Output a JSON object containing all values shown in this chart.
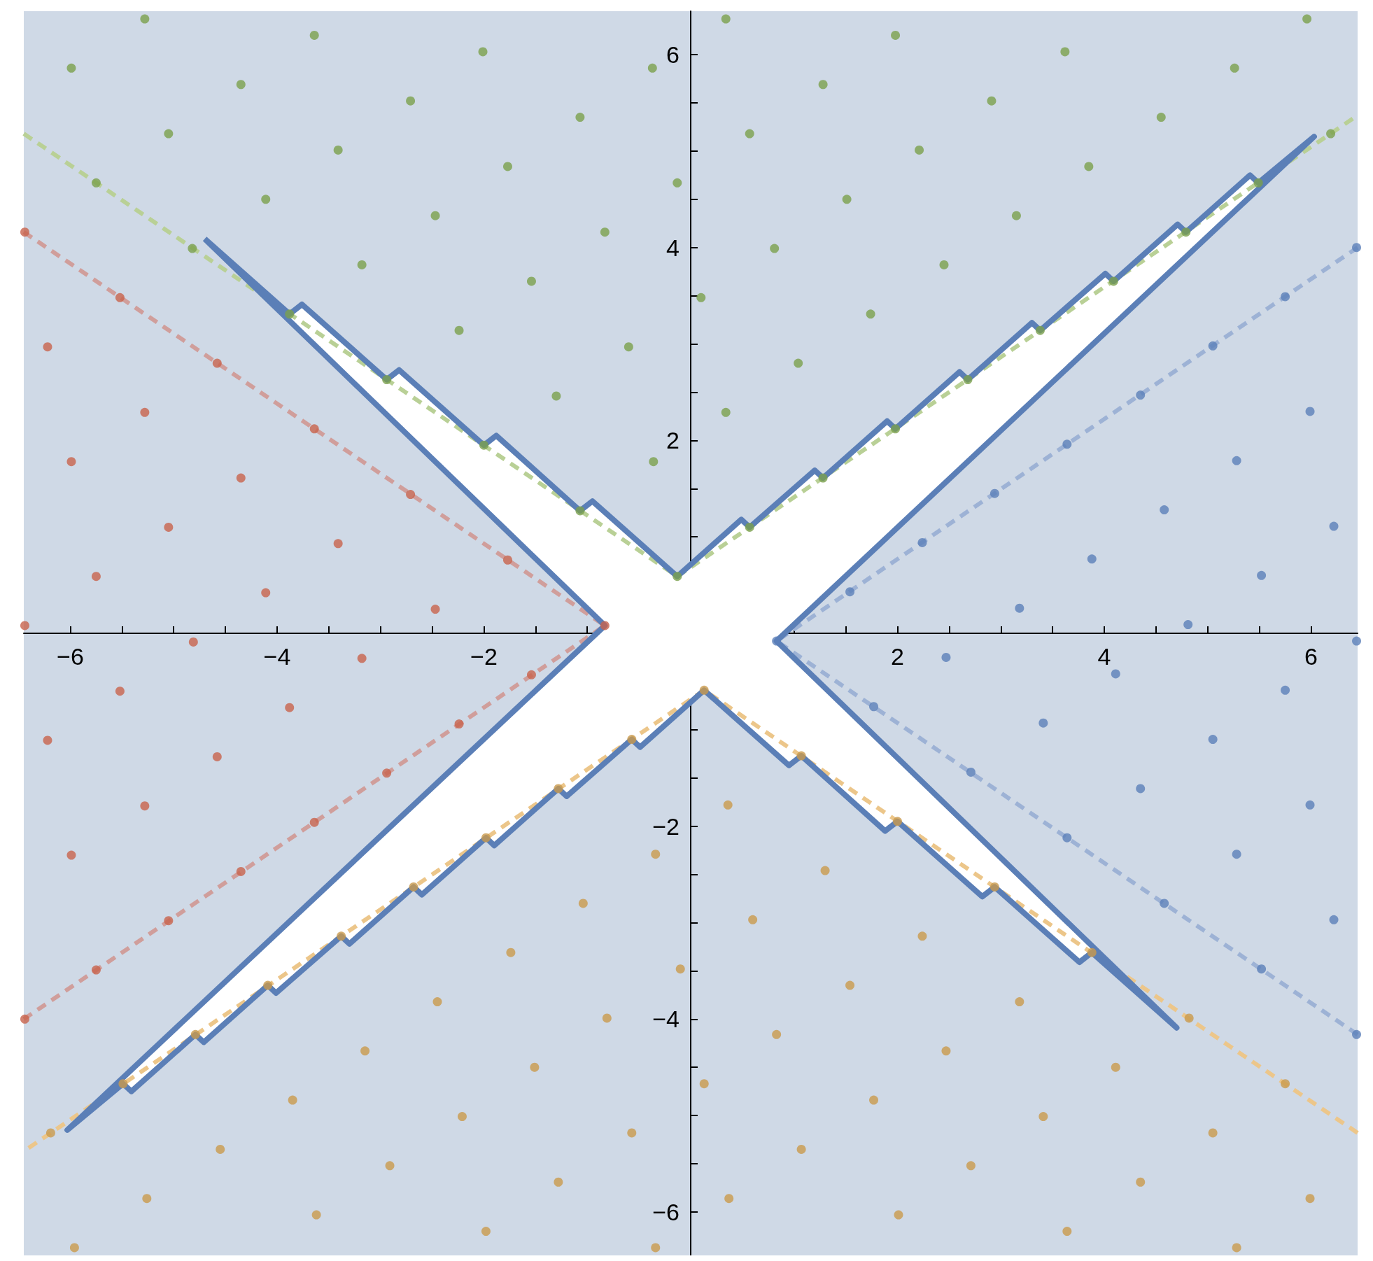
{
  "chart_data": {
    "type": "scatter",
    "xlim": [
      -6.45,
      6.45
    ],
    "ylim": [
      -6.45,
      6.45
    ],
    "xticks": [
      {
        "value": -6,
        "label": "−6"
      },
      {
        "value": -5.5,
        "label": null
      },
      {
        "value": -5,
        "label": null
      },
      {
        "value": -4.5,
        "label": null
      },
      {
        "value": -4,
        "label": "−4"
      },
      {
        "value": -3.5,
        "label": null
      },
      {
        "value": -3,
        "label": null
      },
      {
        "value": -2.5,
        "label": null
      },
      {
        "value": -2,
        "label": "−2"
      },
      {
        "value": -1.5,
        "label": null
      },
      {
        "value": -1,
        "label": null
      },
      {
        "value": -0.5,
        "label": null
      },
      {
        "value": 0.5,
        "label": null
      },
      {
        "value": 1,
        "label": null
      },
      {
        "value": 1.5,
        "label": null
      },
      2,
      {
        "value": 2.5,
        "label": null
      },
      {
        "value": 3,
        "label": null
      },
      {
        "value": 3.5,
        "label": null
      },
      4,
      {
        "value": 4.5,
        "label": null
      },
      {
        "value": 5,
        "label": null
      },
      {
        "value": 5.5,
        "label": null
      },
      6
    ],
    "yticks": [
      {
        "value": -6,
        "label": "−6"
      },
      {
        "value": -5.5,
        "label": null
      },
      {
        "value": -5,
        "label": null
      },
      {
        "value": -4.5,
        "label": null
      },
      {
        "value": -4,
        "label": "−4"
      },
      {
        "value": -3.5,
        "label": null
      },
      {
        "value": -3,
        "label": null
      },
      {
        "value": -2.5,
        "label": null
      },
      {
        "value": -2,
        "label": "−2"
      },
      {
        "value": -1.5,
        "label": null
      },
      {
        "value": -1,
        "label": null
      },
      {
        "value": -0.5,
        "label": null
      },
      {
        "value": 0.5,
        "label": null
      },
      {
        "value": 1,
        "label": null
      },
      {
        "value": 1.5,
        "label": null
      },
      2,
      {
        "value": 2.5,
        "label": null
      },
      {
        "value": 3,
        "label": null
      },
      {
        "value": 3.5,
        "label": null
      },
      4,
      {
        "value": 4.5,
        "label": null
      },
      {
        "value": 5,
        "label": null
      },
      {
        "value": 5.5,
        "label": null
      },
      6
    ],
    "grid": false,
    "series": [
      {
        "type": "line",
        "color": "#b9d096",
        "line_style": "dashed",
        "marker": "none",
        "x": [
          -6.45,
          -0.13,
          6.45
        ],
        "values": [
          5.18,
          0.59,
          5.37
        ]
      },
      {
        "type": "line",
        "color": "#d09e9b",
        "line_style": "dashed",
        "marker": "none",
        "x": [
          -6.45,
          -0.83,
          -6.45
        ],
        "values": [
          4.16,
          0.08,
          -4.0
        ]
      },
      {
        "type": "line",
        "color": "#9db2d5",
        "line_style": "dashed",
        "marker": "none",
        "x": [
          6.45,
          0.83,
          6.45
        ],
        "values": [
          -4.16,
          -0.08,
          4.0
        ]
      },
      {
        "type": "line",
        "color": "#ecc68a",
        "line_style": "dashed",
        "marker": "none",
        "x": [
          6.45,
          0.13,
          -6.45
        ],
        "values": [
          -5.18,
          -0.59,
          -5.37
        ]
      },
      {
        "color": "#7aa04c",
        "marker": "circle",
        "x": [
          -5.99,
          -5.28,
          -5.75,
          -5.05,
          -4.35,
          -3.64,
          -4.82,
          -4.11,
          -3.41,
          -2.71,
          -2.01,
          -3.88,
          -3.18,
          -2.47,
          -1.77,
          -1.07,
          -0.37,
          0.34,
          -2.94,
          -2.24,
          -1.54,
          -0.83,
          -0.13,
          0.57,
          1.28,
          1.98,
          -2.0,
          -1.3,
          -0.6,
          0.1,
          0.81,
          1.51,
          2.21,
          2.91,
          3.62,
          -1.07,
          -0.36,
          0.34,
          1.04,
          1.74,
          2.45,
          3.15,
          3.85,
          4.55,
          5.26,
          5.96,
          -0.13,
          0.57,
          1.28,
          1.98,
          2.68,
          3.38,
          4.09,
          4.79,
          5.49,
          6.19
        ],
        "values": [
          5.86,
          6.37,
          4.67,
          5.18,
          5.69,
          6.2,
          3.99,
          4.5,
          5.01,
          5.52,
          6.03,
          3.31,
          3.82,
          4.33,
          4.84,
          5.35,
          5.86,
          6.37,
          2.63,
          3.14,
          3.65,
          4.16,
          4.67,
          5.18,
          5.69,
          6.2,
          1.95,
          2.46,
          2.97,
          3.48,
          3.99,
          4.5,
          5.01,
          5.52,
          6.03,
          1.27,
          1.78,
          2.29,
          2.8,
          3.31,
          3.82,
          4.33,
          4.84,
          5.35,
          5.86,
          6.37,
          0.59,
          1.1,
          1.61,
          2.12,
          2.63,
          3.14,
          3.65,
          4.16,
          4.67,
          5.18
        ]
      },
      {
        "color": "#c8634c",
        "marker": "circle",
        "x": [
          -6.44,
          -6.22,
          -5.52,
          -5.99,
          -5.28,
          -4.58,
          -6.44,
          -5.75,
          -5.05,
          -4.35,
          -3.64,
          -6.22,
          -5.52,
          -4.81,
          -4.11,
          -3.41,
          -2.71,
          -5.99,
          -5.28,
          -4.58,
          -3.88,
          -3.18,
          -2.47,
          -1.77,
          -6.44,
          -5.75,
          -5.05,
          -4.35,
          -3.64,
          -2.94,
          -2.24,
          -1.54,
          -0.83
        ],
        "values": [
          4.16,
          2.97,
          3.48,
          1.78,
          2.29,
          2.8,
          0.08,
          0.59,
          1.1,
          1.61,
          2.12,
          -1.11,
          -0.6,
          -0.09,
          0.42,
          0.93,
          1.44,
          -2.3,
          -1.79,
          -1.28,
          -0.77,
          -0.26,
          0.25,
          0.76,
          -4.0,
          -3.49,
          -2.98,
          -2.47,
          -1.96,
          -1.45,
          -0.94,
          -0.43,
          0.08
        ]
      },
      {
        "color": "#5b80b9",
        "marker": "circle",
        "x": [
          6.44,
          6.22,
          5.52,
          5.99,
          5.28,
          4.58,
          6.44,
          5.75,
          5.05,
          4.35,
          3.64,
          6.22,
          5.52,
          4.81,
          4.11,
          3.41,
          2.71,
          5.99,
          5.28,
          4.58,
          3.88,
          3.18,
          2.47,
          1.77,
          6.44,
          5.75,
          5.05,
          4.35,
          3.64,
          2.94,
          2.24,
          1.54,
          0.83
        ],
        "values": [
          -4.16,
          -2.97,
          -3.48,
          -1.78,
          -2.29,
          -2.8,
          -0.08,
          -0.59,
          -1.1,
          -1.61,
          -2.12,
          1.11,
          0.6,
          0.09,
          -0.42,
          -0.93,
          -1.44,
          2.3,
          1.79,
          1.28,
          0.77,
          0.26,
          -0.25,
          -0.76,
          4.0,
          3.49,
          2.98,
          2.47,
          1.96,
          1.45,
          0.94,
          0.43,
          -0.08
        ]
      },
      {
        "color": "#c99a4c",
        "marker": "circle",
        "x": [
          5.99,
          5.28,
          5.75,
          5.05,
          4.35,
          3.64,
          4.82,
          4.11,
          3.41,
          2.71,
          2.01,
          3.88,
          3.18,
          2.47,
          1.77,
          1.07,
          0.37,
          -0.34,
          2.94,
          2.24,
          1.54,
          0.83,
          0.13,
          -0.57,
          -1.28,
          -1.98,
          2.0,
          1.3,
          0.6,
          -0.1,
          -0.81,
          -1.51,
          -2.21,
          -2.91,
          -3.62,
          1.07,
          0.36,
          -0.34,
          -1.04,
          -1.74,
          -2.45,
          -3.15,
          -3.85,
          -4.55,
          -5.26,
          -5.96,
          0.13,
          -0.57,
          -1.28,
          -1.98,
          -2.68,
          -3.38,
          -4.09,
          -4.79,
          -5.49,
          -6.19
        ],
        "values": [
          -5.86,
          -6.37,
          -4.67,
          -5.18,
          -5.69,
          -6.2,
          -3.99,
          -4.5,
          -5.01,
          -5.52,
          -6.03,
          -3.31,
          -3.82,
          -4.33,
          -4.84,
          -5.35,
          -5.86,
          -6.37,
          -2.63,
          -3.14,
          -3.65,
          -4.16,
          -4.67,
          -5.18,
          -5.69,
          -6.2,
          -1.95,
          -2.46,
          -2.97,
          -3.48,
          -3.99,
          -4.5,
          -5.01,
          -5.52,
          -6.03,
          -1.27,
          -1.78,
          -2.29,
          -2.8,
          -3.31,
          -3.82,
          -4.33,
          -4.84,
          -5.35,
          -5.86,
          -6.37,
          -0.59,
          -1.1,
          -1.61,
          -2.12,
          -2.63,
          -3.14,
          -3.65,
          -4.16,
          -4.67,
          -5.18
        ]
      },
      {
        "type": "area",
        "color": "#5b7fb7",
        "line_style": "solid",
        "marker": "none",
        "x": [
          -4.7,
          -3.88,
          -3.76,
          -2.94,
          -2.82,
          -2.0,
          -1.88,
          -1.07,
          -0.95,
          -0.13,
          0.49,
          0.57,
          1.2,
          1.28,
          1.9,
          1.98,
          2.6,
          2.68,
          3.3,
          3.38,
          4.01,
          4.09,
          4.71,
          4.79,
          5.41,
          5.49,
          6.03,
          0.83,
          4.7,
          3.88,
          3.76,
          2.94,
          2.82,
          2.0,
          1.88,
          1.07,
          0.95,
          0.13,
          -0.49,
          -0.57,
          -1.2,
          -1.28,
          -1.9,
          -1.98,
          -2.6,
          -2.68,
          -3.3,
          -3.38,
          -4.01,
          -4.09,
          -4.71,
          -4.79,
          -5.41,
          -5.49,
          -6.03,
          -0.83,
          -4.7
        ],
        "values": [
          4.09,
          3.31,
          3.41,
          2.63,
          2.73,
          1.95,
          2.05,
          1.27,
          1.37,
          0.59,
          1.18,
          1.1,
          1.69,
          1.61,
          2.2,
          2.12,
          2.71,
          2.63,
          3.22,
          3.14,
          3.73,
          3.65,
          4.24,
          4.16,
          4.75,
          4.67,
          5.15,
          -0.08,
          -4.09,
          -3.31,
          -3.41,
          -2.63,
          -2.73,
          -1.95,
          -2.05,
          -1.27,
          -1.37,
          -0.59,
          -1.18,
          -1.1,
          -1.69,
          -1.61,
          -2.2,
          -2.12,
          -2.71,
          -2.63,
          -3.22,
          -3.14,
          -3.73,
          -3.65,
          -4.24,
          -4.16,
          -4.75,
          -4.67,
          -5.15,
          0.08,
          4.09
        ]
      }
    ]
  }
}
